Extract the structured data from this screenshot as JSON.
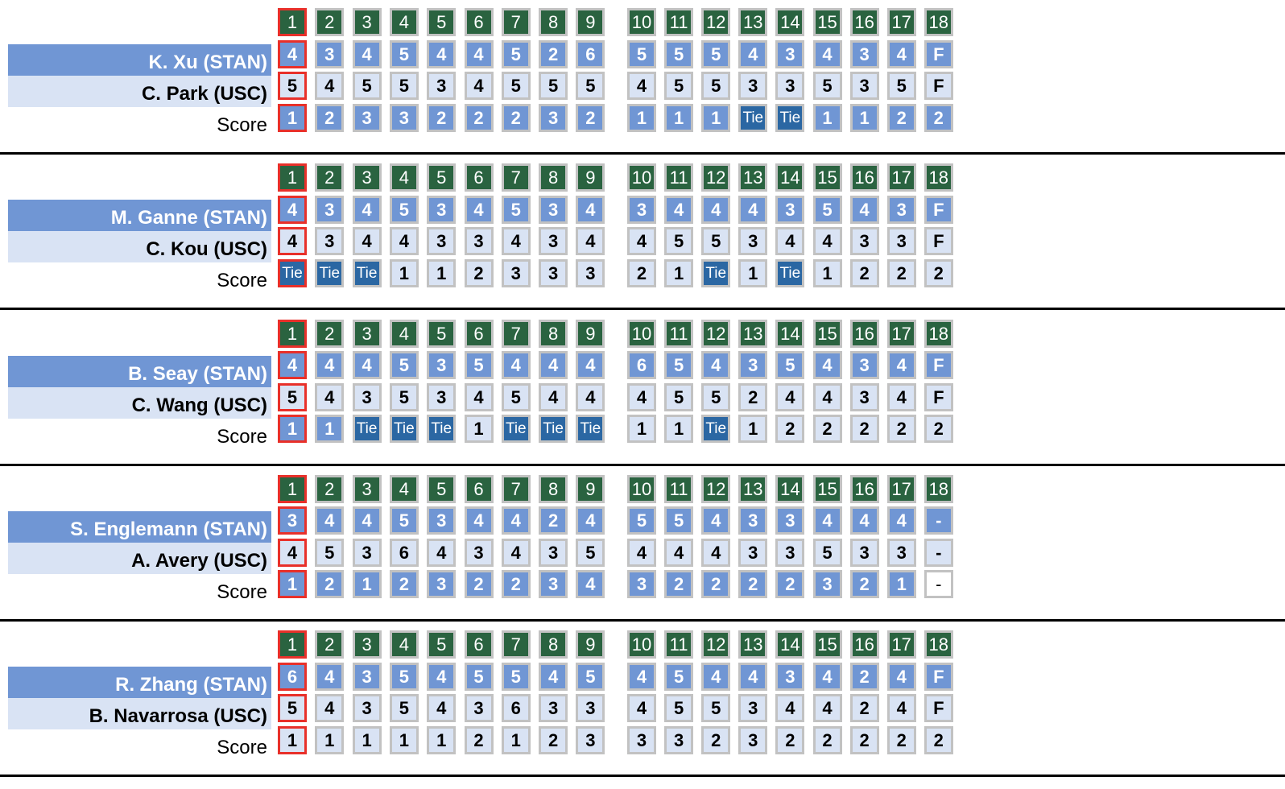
{
  "colors": {
    "hole_header": "#2a6340",
    "stan": "#7096d4",
    "usc": "#d9e3f4",
    "tie": "#2b67a3",
    "current_hole_border": "#e8302a"
  },
  "score_label": "Score",
  "holes": [
    "1",
    "2",
    "3",
    "4",
    "5",
    "6",
    "7",
    "8",
    "9",
    "10",
    "11",
    "12",
    "13",
    "14",
    "15",
    "16",
    "17",
    "18"
  ],
  "current_hole": "1",
  "matches": [
    {
      "stan_player": "K. Xu (STAN)",
      "usc_player": "C. Park (USC)",
      "stan_scores": [
        "4",
        "3",
        "4",
        "5",
        "4",
        "4",
        "5",
        "2",
        "6",
        "5",
        "5",
        "5",
        "4",
        "3",
        "4",
        "3",
        "4",
        "F"
      ],
      "usc_scores": [
        "5",
        "4",
        "5",
        "5",
        "3",
        "4",
        "5",
        "5",
        "5",
        "4",
        "5",
        "5",
        "3",
        "3",
        "5",
        "3",
        "5",
        "F"
      ],
      "match_score": [
        [
          "1",
          "S"
        ],
        [
          "2",
          "S"
        ],
        [
          "3",
          "S"
        ],
        [
          "3",
          "S"
        ],
        [
          "2",
          "S"
        ],
        [
          "2",
          "S"
        ],
        [
          "2",
          "S"
        ],
        [
          "3",
          "S"
        ],
        [
          "2",
          "S"
        ],
        [
          "1",
          "S"
        ],
        [
          "1",
          "S"
        ],
        [
          "1",
          "S"
        ],
        [
          "Tie",
          "T"
        ],
        [
          "Tie",
          "T"
        ],
        [
          "1",
          "S"
        ],
        [
          "1",
          "S"
        ],
        [
          "2",
          "S"
        ],
        [
          "2",
          "S"
        ]
      ]
    },
    {
      "stan_player": "M. Ganne (STAN)",
      "usc_player": "C. Kou (USC)",
      "stan_scores": [
        "4",
        "3",
        "4",
        "5",
        "3",
        "4",
        "5",
        "3",
        "4",
        "3",
        "4",
        "4",
        "4",
        "3",
        "5",
        "4",
        "3",
        "F"
      ],
      "usc_scores": [
        "4",
        "3",
        "4",
        "4",
        "3",
        "3",
        "4",
        "3",
        "4",
        "4",
        "5",
        "5",
        "3",
        "4",
        "4",
        "3",
        "3",
        "F"
      ],
      "match_score": [
        [
          "Tie",
          "T"
        ],
        [
          "Tie",
          "T"
        ],
        [
          "Tie",
          "T"
        ],
        [
          "1",
          "U"
        ],
        [
          "1",
          "U"
        ],
        [
          "2",
          "U"
        ],
        [
          "3",
          "U"
        ],
        [
          "3",
          "U"
        ],
        [
          "3",
          "U"
        ],
        [
          "2",
          "U"
        ],
        [
          "1",
          "U"
        ],
        [
          "Tie",
          "T"
        ],
        [
          "1",
          "U"
        ],
        [
          "Tie",
          "T"
        ],
        [
          "1",
          "U"
        ],
        [
          "2",
          "U"
        ],
        [
          "2",
          "U"
        ],
        [
          "2",
          "U"
        ]
      ]
    },
    {
      "stan_player": "B. Seay (STAN)",
      "usc_player": "C. Wang (USC)",
      "stan_scores": [
        "4",
        "4",
        "4",
        "5",
        "3",
        "5",
        "4",
        "4",
        "4",
        "6",
        "5",
        "4",
        "3",
        "5",
        "4",
        "3",
        "4",
        "F"
      ],
      "usc_scores": [
        "5",
        "4",
        "3",
        "5",
        "3",
        "4",
        "5",
        "4",
        "4",
        "4",
        "5",
        "5",
        "2",
        "4",
        "4",
        "3",
        "4",
        "F"
      ],
      "match_score": [
        [
          "1",
          "S"
        ],
        [
          "1",
          "S"
        ],
        [
          "Tie",
          "T"
        ],
        [
          "Tie",
          "T"
        ],
        [
          "Tie",
          "T"
        ],
        [
          "1",
          "U"
        ],
        [
          "Tie",
          "T"
        ],
        [
          "Tie",
          "T"
        ],
        [
          "Tie",
          "T"
        ],
        [
          "1",
          "U"
        ],
        [
          "1",
          "U"
        ],
        [
          "Tie",
          "T"
        ],
        [
          "1",
          "U"
        ],
        [
          "2",
          "U"
        ],
        [
          "2",
          "U"
        ],
        [
          "2",
          "U"
        ],
        [
          "2",
          "U"
        ],
        [
          "2",
          "U"
        ]
      ]
    },
    {
      "stan_player": "S. Englemann (STAN)",
      "usc_player": "A. Avery (USC)",
      "stan_scores": [
        "3",
        "4",
        "4",
        "5",
        "3",
        "4",
        "4",
        "2",
        "4",
        "5",
        "5",
        "4",
        "3",
        "3",
        "4",
        "4",
        "4",
        "-"
      ],
      "usc_scores": [
        "4",
        "5",
        "3",
        "6",
        "4",
        "3",
        "4",
        "3",
        "5",
        "4",
        "4",
        "4",
        "3",
        "3",
        "5",
        "3",
        "3",
        "-"
      ],
      "match_score": [
        [
          "1",
          "S"
        ],
        [
          "2",
          "S"
        ],
        [
          "1",
          "S"
        ],
        [
          "2",
          "S"
        ],
        [
          "3",
          "S"
        ],
        [
          "2",
          "S"
        ],
        [
          "2",
          "S"
        ],
        [
          "3",
          "S"
        ],
        [
          "4",
          "S"
        ],
        [
          "3",
          "S"
        ],
        [
          "2",
          "S"
        ],
        [
          "2",
          "S"
        ],
        [
          "2",
          "S"
        ],
        [
          "2",
          "S"
        ],
        [
          "3",
          "S"
        ],
        [
          "2",
          "S"
        ],
        [
          "1",
          "S"
        ],
        [
          "-",
          "N"
        ]
      ]
    },
    {
      "stan_player": "R. Zhang (STAN)",
      "usc_player": "B. Navarrosa (USC)",
      "stan_scores": [
        "6",
        "4",
        "3",
        "5",
        "4",
        "5",
        "5",
        "4",
        "5",
        "4",
        "5",
        "4",
        "4",
        "3",
        "4",
        "2",
        "4",
        "F"
      ],
      "usc_scores": [
        "5",
        "4",
        "3",
        "5",
        "4",
        "3",
        "6",
        "3",
        "3",
        "4",
        "5",
        "5",
        "3",
        "4",
        "4",
        "2",
        "4",
        "F"
      ],
      "match_score": [
        [
          "1",
          "U"
        ],
        [
          "1",
          "U"
        ],
        [
          "1",
          "U"
        ],
        [
          "1",
          "U"
        ],
        [
          "1",
          "U"
        ],
        [
          "2",
          "U"
        ],
        [
          "1",
          "U"
        ],
        [
          "2",
          "U"
        ],
        [
          "3",
          "U"
        ],
        [
          "3",
          "U"
        ],
        [
          "3",
          "U"
        ],
        [
          "2",
          "U"
        ],
        [
          "3",
          "U"
        ],
        [
          "2",
          "U"
        ],
        [
          "2",
          "U"
        ],
        [
          "2",
          "U"
        ],
        [
          "2",
          "U"
        ],
        [
          "2",
          "U"
        ]
      ]
    }
  ]
}
